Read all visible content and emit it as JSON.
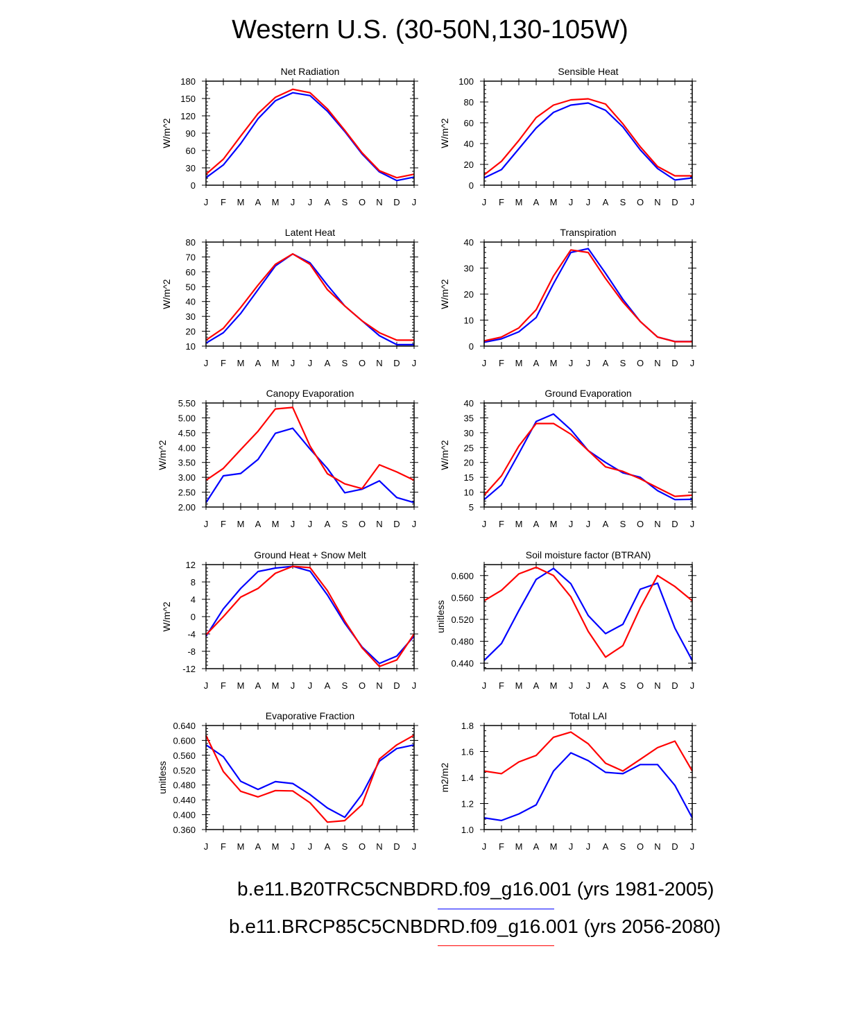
{
  "title": "Western U.S. (30-50N,130-105W)",
  "legend": {
    "entries": [
      {
        "label": "b.e11.B20TRC5CNBDRD.f09_g16.001 (yrs 1981-2005)",
        "color": "#0000ff"
      },
      {
        "label": "b.e11.BRCP85C5CNBDRD.f09_g16.001 (yrs 2056-2080)",
        "color": "#ff0000"
      }
    ]
  },
  "chart_data": [
    {
      "type": "line",
      "title": "Net Radiation",
      "ylabel": "W/m^2",
      "ylim": [
        0,
        180
      ],
      "yticks": [
        0,
        30,
        60,
        90,
        120,
        150,
        180
      ],
      "decimals": 0,
      "categories": [
        "J",
        "F",
        "M",
        "A",
        "M",
        "J",
        "J",
        "A",
        "S",
        "O",
        "N",
        "D",
        "J"
      ],
      "series": [
        {
          "name": "b.e11.B20TRC5CNBDRD.f09_g16.001 (yrs 1981-2005)",
          "color": "#0000ff",
          "values": [
            13,
            35,
            72,
            115,
            146,
            160,
            155,
            128,
            93,
            54,
            23,
            8,
            14
          ]
        },
        {
          "name": "b.e11.BRCP85C5CNBDRD.f09_g16.001 (yrs 2056-2080)",
          "color": "#ff0000",
          "values": [
            19,
            45,
            85,
            124,
            152,
            166,
            160,
            132,
            95,
            56,
            25,
            13,
            19
          ]
        }
      ]
    },
    {
      "type": "line",
      "title": "Sensible Heat",
      "ylabel": "W/m^2",
      "ylim": [
        0,
        100
      ],
      "yticks": [
        0,
        20,
        40,
        60,
        80,
        100
      ],
      "decimals": 0,
      "categories": [
        "J",
        "F",
        "M",
        "A",
        "M",
        "J",
        "J",
        "A",
        "S",
        "O",
        "N",
        "D",
        "J"
      ],
      "series": [
        {
          "name": "b.e11.B20TRC5CNBDRD.f09_g16.001 (yrs 1981-2005)",
          "color": "#0000ff",
          "values": [
            7,
            15,
            35,
            55,
            70,
            77,
            79,
            72,
            56,
            34,
            16,
            5,
            7
          ]
        },
        {
          "name": "b.e11.BRCP85C5CNBDRD.f09_g16.001 (yrs 2056-2080)",
          "color": "#ff0000",
          "values": [
            10,
            23,
            43,
            65,
            77,
            82,
            83,
            78,
            59,
            37,
            18,
            9,
            9
          ]
        }
      ]
    },
    {
      "type": "line",
      "title": "Latent Heat",
      "ylabel": "W/m^2",
      "ylim": [
        10,
        80
      ],
      "yticks": [
        10,
        20,
        30,
        40,
        50,
        60,
        70,
        80
      ],
      "decimals": 0,
      "categories": [
        "J",
        "F",
        "M",
        "A",
        "M",
        "J",
        "J",
        "A",
        "S",
        "O",
        "N",
        "D",
        "J"
      ],
      "series": [
        {
          "name": "b.e11.B20TRC5CNBDRD.f09_g16.001 (yrs 1981-2005)",
          "color": "#0000ff",
          "values": [
            12,
            19,
            32,
            48,
            64,
            72,
            66,
            51,
            37,
            27,
            17,
            11,
            11
          ]
        },
        {
          "name": "b.e11.BRCP85C5CNBDRD.f09_g16.001 (yrs 2056-2080)",
          "color": "#ff0000",
          "values": [
            14,
            22,
            36,
            51,
            65,
            72,
            65,
            48,
            37,
            27,
            19,
            14,
            14
          ]
        }
      ]
    },
    {
      "type": "line",
      "title": "Transpiration",
      "ylabel": "W/m^2",
      "ylim": [
        0,
        40
      ],
      "yticks": [
        0,
        10,
        20,
        30,
        40
      ],
      "decimals": 0,
      "categories": [
        "J",
        "F",
        "M",
        "A",
        "M",
        "J",
        "J",
        "A",
        "S",
        "O",
        "N",
        "D",
        "J"
      ],
      "series": [
        {
          "name": "b.e11.B20TRC5CNBDRD.f09_g16.001 (yrs 1981-2005)",
          "color": "#0000ff",
          "values": [
            1.5,
            2.8,
            5.5,
            11,
            24,
            36,
            37.5,
            28,
            18,
            9.5,
            3.5,
            1.8,
            1.8
          ]
        },
        {
          "name": "b.e11.BRCP85C5CNBDRD.f09_g16.001 (yrs 2056-2080)",
          "color": "#ff0000",
          "values": [
            2,
            3.5,
            7,
            14,
            27,
            37,
            36,
            26,
            17,
            9.5,
            3.5,
            1.7,
            1.7
          ]
        }
      ]
    },
    {
      "type": "line",
      "title": "Canopy Evaporation",
      "ylabel": "W/m^2",
      "ylim": [
        2.0,
        5.5
      ],
      "yticks": [
        2.0,
        2.5,
        3.0,
        3.5,
        4.0,
        4.5,
        5.0,
        5.5
      ],
      "decimals": 2,
      "categories": [
        "J",
        "F",
        "M",
        "A",
        "M",
        "J",
        "J",
        "A",
        "S",
        "O",
        "N",
        "D",
        "J"
      ],
      "series": [
        {
          "name": "b.e11.B20TRC5CNBDRD.f09_g16.001 (yrs 1981-2005)",
          "color": "#0000ff",
          "values": [
            2.15,
            3.05,
            3.13,
            3.6,
            4.48,
            4.65,
            3.95,
            3.3,
            2.48,
            2.6,
            2.88,
            2.32,
            2.15
          ]
        },
        {
          "name": "b.e11.BRCP85C5CNBDRD.f09_g16.001 (yrs 2056-2080)",
          "color": "#ff0000",
          "values": [
            2.9,
            3.3,
            3.93,
            4.55,
            5.3,
            5.35,
            4.05,
            3.12,
            2.78,
            2.62,
            3.42,
            3.18,
            2.9
          ]
        }
      ]
    },
    {
      "type": "line",
      "title": "Ground Evaporation",
      "ylabel": "W/m^2",
      "ylim": [
        5,
        40
      ],
      "yticks": [
        5,
        10,
        15,
        20,
        25,
        30,
        35,
        40
      ],
      "decimals": 0,
      "categories": [
        "J",
        "F",
        "M",
        "A",
        "M",
        "J",
        "J",
        "A",
        "S",
        "O",
        "N",
        "D",
        "J"
      ],
      "series": [
        {
          "name": "b.e11.B20TRC5CNBDRD.f09_g16.001 (yrs 1981-2005)",
          "color": "#0000ff",
          "values": [
            7.5,
            12.5,
            23,
            33.8,
            36.3,
            31,
            24,
            20,
            16.5,
            15,
            10.5,
            7.5,
            7.6
          ]
        },
        {
          "name": "b.e11.BRCP85C5CNBDRD.f09_g16.001 (yrs 2056-2080)",
          "color": "#ff0000",
          "values": [
            9,
            15.5,
            25.5,
            33.1,
            33.1,
            29.5,
            24,
            18.5,
            17,
            14.5,
            11.5,
            8.6,
            9
          ]
        }
      ]
    },
    {
      "type": "line",
      "title": "Ground Heat + Snow Melt",
      "ylabel": "W/m^2",
      "ylim": [
        -12,
        12
      ],
      "yticks": [
        -12,
        -8,
        -4,
        0,
        4,
        8,
        12
      ],
      "decimals": 0,
      "categories": [
        "J",
        "F",
        "M",
        "A",
        "M",
        "J",
        "J",
        "A",
        "S",
        "O",
        "N",
        "D",
        "J"
      ],
      "series": [
        {
          "name": "b.e11.B20TRC5CNBDRD.f09_g16.001 (yrs 1981-2005)",
          "color": "#0000ff",
          "values": [
            -4.5,
            1.8,
            6.5,
            10.4,
            11.2,
            11.6,
            10.5,
            5,
            -1.5,
            -7,
            -10.8,
            -9.1,
            -4.5
          ]
        },
        {
          "name": "b.e11.BRCP85C5CNBDRD.f09_g16.001 (yrs 2056-2080)",
          "color": "#ff0000",
          "values": [
            -4.2,
            0,
            4.5,
            6.5,
            10,
            11.6,
            11.3,
            6,
            -1,
            -7.2,
            -11.5,
            -10,
            -4
          ]
        }
      ]
    },
    {
      "type": "line",
      "title": "Soil moisture factor (BTRAN)",
      "ylabel": "unitless",
      "ylim": [
        0.43,
        0.62
      ],
      "yticks": [
        0.44,
        0.48,
        0.52,
        0.56,
        0.6
      ],
      "decimals": 3,
      "categories": [
        "J",
        "F",
        "M",
        "A",
        "M",
        "J",
        "J",
        "A",
        "S",
        "O",
        "N",
        "D",
        "J"
      ],
      "series": [
        {
          "name": "b.e11.B20TRC5CNBDRD.f09_g16.001 (yrs 1981-2005)",
          "color": "#0000ff",
          "values": [
            0.445,
            0.476,
            0.536,
            0.593,
            0.613,
            0.585,
            0.527,
            0.494,
            0.511,
            0.575,
            0.586,
            0.504,
            0.445
          ]
        },
        {
          "name": "b.e11.BRCP85C5CNBDRD.f09_g16.001 (yrs 2056-2080)",
          "color": "#ff0000",
          "values": [
            0.554,
            0.573,
            0.603,
            0.615,
            0.6,
            0.561,
            0.498,
            0.451,
            0.472,
            0.541,
            0.6,
            0.58,
            0.554
          ]
        }
      ]
    },
    {
      "type": "line",
      "title": "Evaporative Fraction",
      "ylabel": "unitless",
      "ylim": [
        0.36,
        0.64
      ],
      "yticks": [
        0.36,
        0.4,
        0.44,
        0.48,
        0.52,
        0.56,
        0.6,
        0.64
      ],
      "decimals": 3,
      "categories": [
        "J",
        "F",
        "M",
        "A",
        "M",
        "J",
        "J",
        "A",
        "S",
        "O",
        "N",
        "D",
        "J"
      ],
      "series": [
        {
          "name": "b.e11.B20TRC5CNBDRD.f09_g16.001 (yrs 1981-2005)",
          "color": "#0000ff",
          "values": [
            0.588,
            0.556,
            0.49,
            0.468,
            0.489,
            0.484,
            0.454,
            0.418,
            0.393,
            0.455,
            0.544,
            0.578,
            0.588
          ]
        },
        {
          "name": "b.e11.BRCP85C5CNBDRD.f09_g16.001 (yrs 2056-2080)",
          "color": "#ff0000",
          "values": [
            0.613,
            0.516,
            0.463,
            0.448,
            0.465,
            0.464,
            0.432,
            0.38,
            0.384,
            0.427,
            0.55,
            0.588,
            0.614
          ]
        }
      ]
    },
    {
      "type": "line",
      "title": "Total LAI",
      "ylabel": "m2/m2",
      "ylim": [
        1.0,
        1.8
      ],
      "yticks": [
        1.0,
        1.2,
        1.4,
        1.6,
        1.8
      ],
      "decimals": 1,
      "categories": [
        "J",
        "F",
        "M",
        "A",
        "M",
        "J",
        "J",
        "A",
        "S",
        "O",
        "N",
        "D",
        "J"
      ],
      "series": [
        {
          "name": "b.e11.B20TRC5CNBDRD.f09_g16.001 (yrs 1981-2005)",
          "color": "#0000ff",
          "values": [
            1.09,
            1.07,
            1.12,
            1.19,
            1.45,
            1.59,
            1.53,
            1.44,
            1.43,
            1.5,
            1.5,
            1.34,
            1.09
          ]
        },
        {
          "name": "b.e11.BRCP85C5CNBDRD.f09_g16.001 (yrs 2056-2080)",
          "color": "#ff0000",
          "values": [
            1.45,
            1.43,
            1.52,
            1.57,
            1.71,
            1.75,
            1.66,
            1.51,
            1.45,
            1.54,
            1.63,
            1.68,
            1.45
          ]
        }
      ]
    }
  ]
}
